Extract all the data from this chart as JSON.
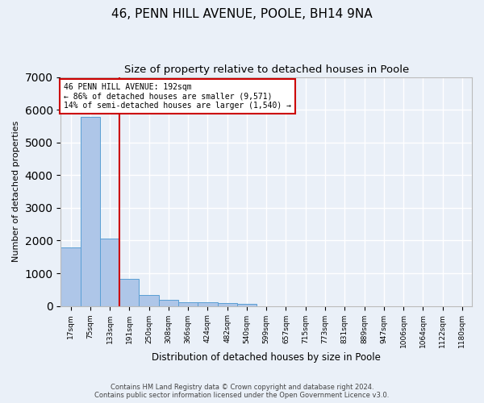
{
  "title1": "46, PENN HILL AVENUE, POOLE, BH14 9NA",
  "title2": "Size of property relative to detached houses in Poole",
  "xlabel": "Distribution of detached houses by size in Poole",
  "ylabel": "Number of detached properties",
  "bin_labels": [
    "17sqm",
    "75sqm",
    "133sqm",
    "191sqm",
    "250sqm",
    "308sqm",
    "366sqm",
    "424sqm",
    "482sqm",
    "540sqm",
    "599sqm",
    "657sqm",
    "715sqm",
    "773sqm",
    "831sqm",
    "889sqm",
    "947sqm",
    "1006sqm",
    "1064sqm",
    "1122sqm",
    "1180sqm"
  ],
  "bar_values": [
    1780,
    5780,
    2070,
    820,
    340,
    195,
    120,
    110,
    100,
    70,
    0,
    0,
    0,
    0,
    0,
    0,
    0,
    0,
    0,
    0,
    0
  ],
  "bar_color": "#aec6e8",
  "bar_edge_color": "#5a9fd4",
  "vline_x": 3,
  "vline_color": "#cc0000",
  "annotation_line1": "46 PENN HILL AVENUE: 192sqm",
  "annotation_line2": "← 86% of detached houses are smaller (9,571)",
  "annotation_line3": "14% of semi-detached houses are larger (1,540) →",
  "annotation_box_color": "#cc0000",
  "ylim": [
    0,
    7000
  ],
  "yticks": [
    0,
    1000,
    2000,
    3000,
    4000,
    5000,
    6000,
    7000
  ],
  "footer1": "Contains HM Land Registry data © Crown copyright and database right 2024.",
  "footer2": "Contains public sector information licensed under the Open Government Licence v3.0.",
  "bg_color": "#eaf0f8",
  "plot_bg_color": "#eaf0f8",
  "grid_color": "#ffffff",
  "title1_fontsize": 11,
  "title2_fontsize": 9.5
}
